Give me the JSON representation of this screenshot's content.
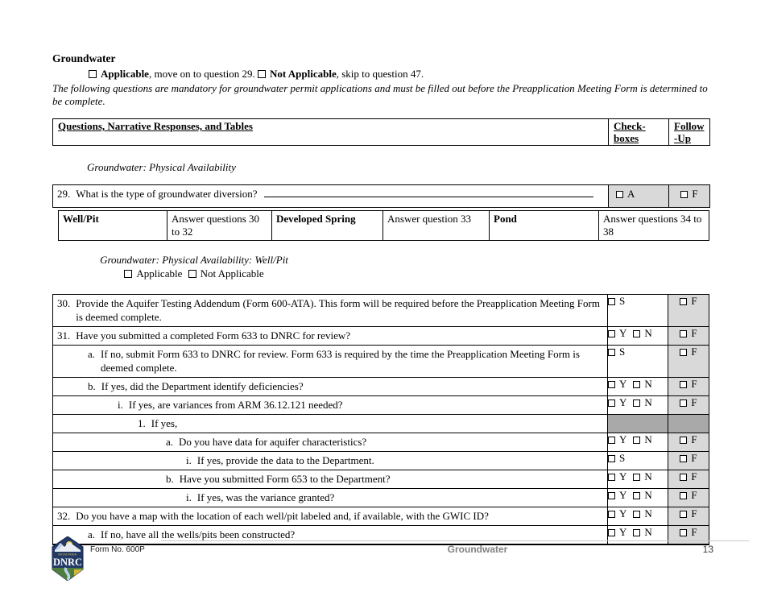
{
  "title": "Groundwater",
  "intro": {
    "applicable_label": "Applicable",
    "applicable_rest": ", move on to question 29. ",
    "not_applicable_label": "Not Applicable",
    "not_applicable_rest": ", skip to question 47.",
    "note": "The following questions are mandatory for groundwater permit applications and must be filled out before the Preapplication Meeting Form is determined to be complete."
  },
  "header_table": {
    "questions_col": "Questions, Narrative Responses, and Tables",
    "check_line1": "Check-",
    "check_line2": "boxes",
    "follow_line1": "Follow",
    "follow_line2": "-Up"
  },
  "checkbox_letters": {
    "applicable": "A",
    "submitted": "S",
    "yes": "Y",
    "no": "N",
    "follow": "F"
  },
  "section1": {
    "title": "Groundwater: Physical Availability",
    "q29": {
      "label": "29.",
      "text": "What is the type of groundwater diversion?"
    },
    "diversion_table": [
      {
        "name": "Well/Pit",
        "instruction": "Answer questions 30 to 32"
      },
      {
        "name": "Developed Spring",
        "instruction": "Answer question 33"
      },
      {
        "name": "Pond",
        "instruction": "Answer questions 34 to 38"
      }
    ]
  },
  "section2": {
    "title": "Groundwater: Physical Availability: Well/Pit",
    "applicable_label": "Applicable",
    "not_applicable_label": "Not Applicable",
    "rows": [
      {
        "label": "30.",
        "level": 0,
        "text": "Provide the Aquifer Testing Addendum (Form 600-ATA). This form will be required before the Preapplication Meeting Form is deemed complete.",
        "check": "S",
        "follow": "F"
      },
      {
        "label": "31.",
        "level": 0,
        "text": "Have you submitted a completed Form 633 to DNRC for review?",
        "check": "YN",
        "follow": "F"
      },
      {
        "label": "a.",
        "level": 1,
        "text": "If no, submit Form 633 to DNRC for review. Form 633 is required by the time the Preapplication Meeting Form is deemed complete.",
        "check": "S",
        "follow": "F"
      },
      {
        "label": "b.",
        "level": 1,
        "text": "If yes, did the Department identify deficiencies?",
        "check": "YN",
        "follow": "F"
      },
      {
        "label": "i.",
        "level": 2,
        "text": "If yes, are variances from ARM 36.12.121 needed?",
        "check": "YN",
        "follow": "F"
      },
      {
        "label": "1.",
        "level": 3,
        "text": "If yes,",
        "check": "none",
        "follow": "none"
      },
      {
        "label": "a.",
        "level": 4,
        "text": "Do you have data for aquifer characteristics?",
        "check": "YN",
        "follow": "F"
      },
      {
        "label": "i.",
        "level": 5,
        "text": "If yes, provide the data to the Department.",
        "check": "S",
        "follow": "F"
      },
      {
        "label": "b.",
        "level": 4,
        "text": "Have you submitted Form 653 to the Department?",
        "check": "YN",
        "follow": "F"
      },
      {
        "label": "i.",
        "level": 5,
        "text": "If yes, was the variance granted?",
        "check": "YN",
        "follow": "F"
      },
      {
        "label": "32.",
        "level": 0,
        "text": "Do you have a map with the location of each well/pit labeled and, if available, with the GWIC ID?",
        "check": "YN",
        "follow": "F"
      },
      {
        "label": "a.",
        "level": 1,
        "text": "If no, have all the wells/pits been constructed?",
        "check": "YN",
        "follow": "F"
      }
    ]
  },
  "footer": {
    "form_no": "Form No. 600P",
    "section": "Groundwater",
    "page": "13",
    "logo_small_text": "MONTANA",
    "logo_text": "DNRC"
  },
  "colors": {
    "shade_light": "#d9d9d9",
    "shade_dark": "#a9a9a9",
    "footer_gray": "#808080"
  }
}
